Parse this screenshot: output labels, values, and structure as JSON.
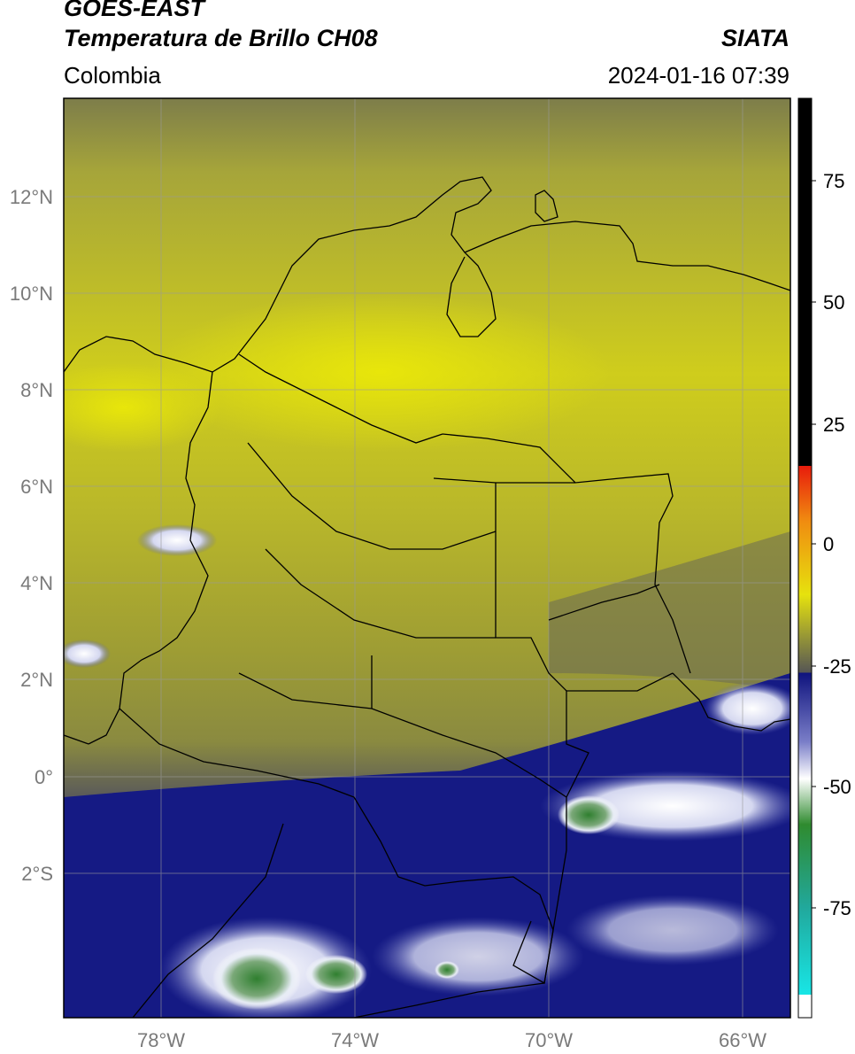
{
  "header": {
    "title_line1": "GOES-EAST",
    "title_line2": "Temperatura de Brillo CH08",
    "brand": "SIATA",
    "region": "Colombia",
    "timestamp": "2024-01-16 07:39"
  },
  "map": {
    "lat_labels": [
      "12°N",
      "10°N",
      "8°N",
      "6°N",
      "4°N",
      "2°N",
      "0°",
      "2°S"
    ],
    "lon_labels": [
      "78°W",
      "74°W",
      "70°W",
      "66°W"
    ]
  },
  "colorbar": {
    "tick_labels": [
      "75",
      "50",
      "25",
      "0",
      "-25",
      "-50",
      "-75"
    ],
    "colors": {
      "warm": "#000000",
      "red": "#e81c0c",
      "orange": "#f08c10",
      "yellow": "#e6e20e",
      "olive": "#8f8f3a",
      "navy": "#0f137e",
      "white": "#ffffff",
      "green": "#2f8b2f",
      "teal": "#21c8b8",
      "cyan": "#18e6e6"
    }
  }
}
